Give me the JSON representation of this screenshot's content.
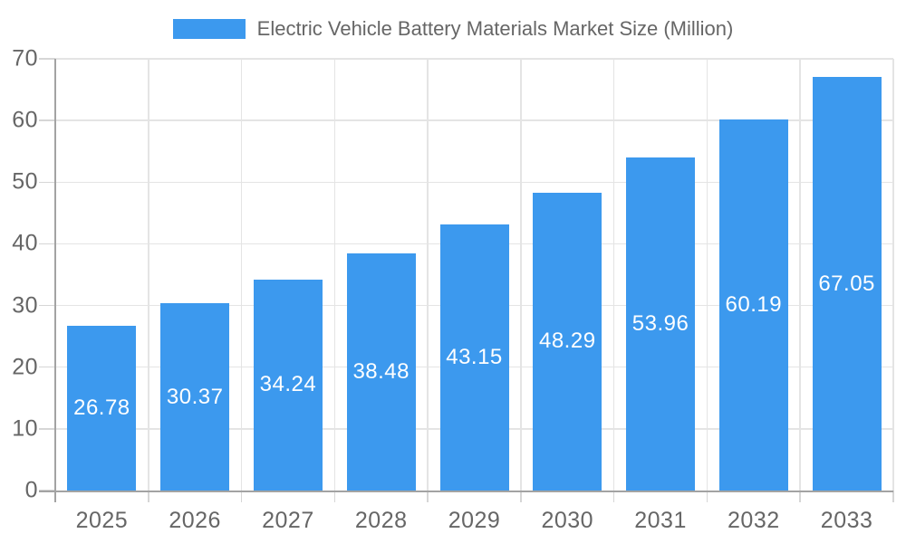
{
  "legend": {
    "label": "Electric Vehicle Battery Materials Market Size (Million)"
  },
  "colors": {
    "bar": "#3C99EE",
    "axis": "#a3a3a3",
    "grid": "#e4e4e4",
    "tick": "#d6d6d6",
    "tick_label": "#666666",
    "value_label": "#ffffff",
    "background": "#ffffff"
  },
  "chart_data": {
    "type": "bar",
    "title": "Electric Vehicle Battery Materials Market Size (Million)",
    "categories": [
      "2025",
      "2026",
      "2027",
      "2028",
      "2029",
      "2030",
      "2031",
      "2032",
      "2033"
    ],
    "values": [
      26.78,
      30.37,
      34.24,
      38.48,
      43.15,
      48.29,
      53.96,
      60.19,
      67.05
    ],
    "series_name": "Electric Vehicle Battery Materials Market Size (Million)",
    "xlabel": "",
    "ylabel": "",
    "ylim": [
      0,
      70
    ],
    "yticks": [
      0,
      10,
      20,
      30,
      40,
      50,
      60,
      70
    ],
    "grid": true,
    "legend_position": "top",
    "value_label_position": "inside-center"
  }
}
